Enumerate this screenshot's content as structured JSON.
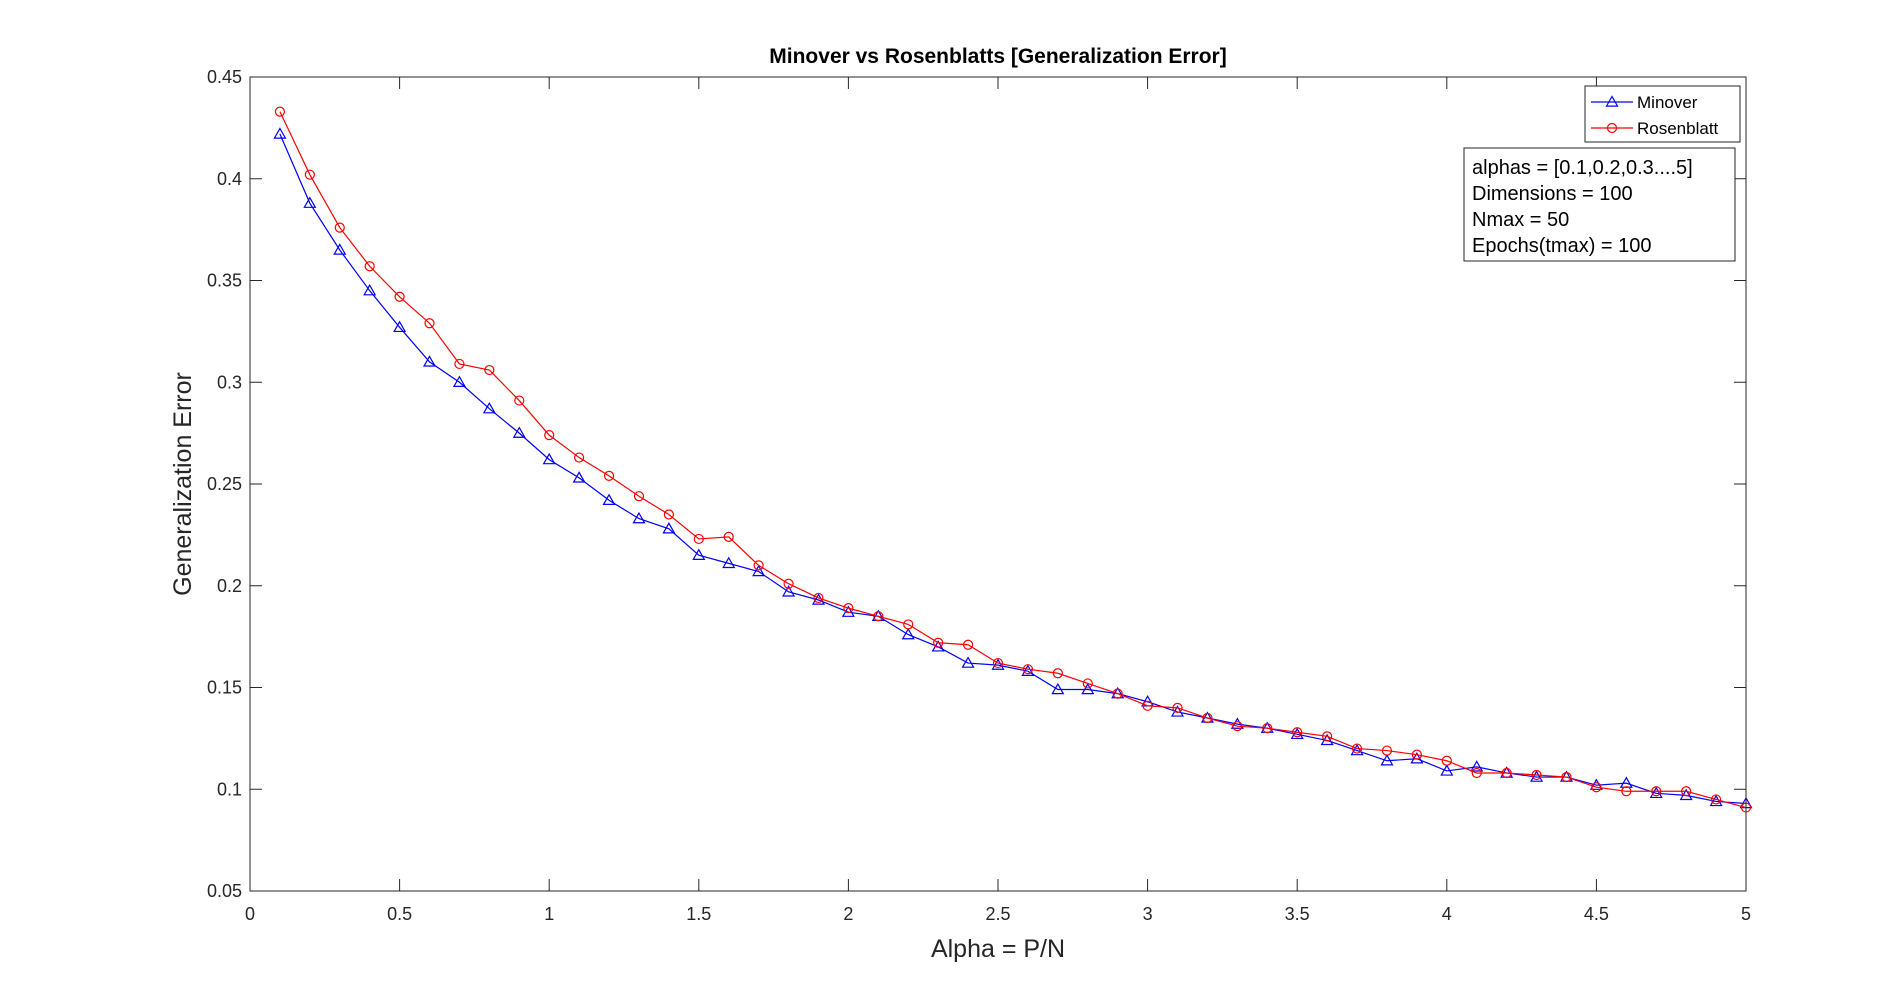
{
  "chart_data": {
    "type": "line",
    "title": "Minover vs Rosenblatts [Generalization Error]",
    "xlabel": "Alpha = P/N",
    "ylabel": "Generalization Error",
    "xlim": [
      0,
      5
    ],
    "ylim": [
      0.05,
      0.45
    ],
    "xticks": [
      0,
      0.5,
      1,
      1.5,
      2,
      2.5,
      3,
      3.5,
      4,
      4.5,
      5
    ],
    "xtick_labels": [
      "0",
      "0.5",
      "1",
      "1.5",
      "2",
      "2.5",
      "3",
      "3.5",
      "4",
      "4.5",
      "5"
    ],
    "yticks": [
      0.05,
      0.1,
      0.15,
      0.2,
      0.25,
      0.3,
      0.35,
      0.4,
      0.45
    ],
    "ytick_labels": [
      "0.05",
      "0.1",
      "0.15",
      "0.2",
      "0.25",
      "0.3",
      "0.35",
      "0.4",
      "0.45"
    ],
    "grid": false,
    "legend_position": "top-right",
    "x": [
      0.1,
      0.2,
      0.3,
      0.4,
      0.5,
      0.6,
      0.7,
      0.8,
      0.9,
      1.0,
      1.1,
      1.2,
      1.3,
      1.4,
      1.5,
      1.6,
      1.7,
      1.8,
      1.9,
      2.0,
      2.1,
      2.2,
      2.3,
      2.4,
      2.5,
      2.6,
      2.7,
      2.8,
      2.9,
      3.0,
      3.1,
      3.2,
      3.3,
      3.4,
      3.5,
      3.6,
      3.7,
      3.8,
      3.9,
      4.0,
      4.1,
      4.2,
      4.3,
      4.4,
      4.5,
      4.6,
      4.7,
      4.8,
      4.9,
      5.0
    ],
    "series": [
      {
        "name": "Minover",
        "color": "#0000ff",
        "marker": "triangle",
        "values": [
          0.422,
          0.388,
          0.365,
          0.345,
          0.327,
          0.31,
          0.3,
          0.287,
          0.275,
          0.262,
          0.253,
          0.242,
          0.233,
          0.228,
          0.215,
          0.211,
          0.207,
          0.197,
          0.193,
          0.187,
          0.185,
          0.176,
          0.17,
          0.162,
          0.161,
          0.158,
          0.149,
          0.149,
          0.147,
          0.143,
          0.138,
          0.135,
          0.132,
          0.13,
          0.127,
          0.124,
          0.119,
          0.114,
          0.115,
          0.109,
          0.111,
          0.108,
          0.106,
          0.106,
          0.102,
          0.103,
          0.098,
          0.097,
          0.094,
          0.093
        ]
      },
      {
        "name": "Rosenblatt",
        "color": "#ff0000",
        "marker": "circle",
        "values": [
          0.433,
          0.402,
          0.376,
          0.357,
          0.342,
          0.329,
          0.309,
          0.306,
          0.291,
          0.274,
          0.263,
          0.254,
          0.244,
          0.235,
          0.223,
          0.224,
          0.21,
          0.201,
          0.194,
          0.189,
          0.185,
          0.181,
          0.172,
          0.171,
          0.162,
          0.159,
          0.157,
          0.152,
          0.147,
          0.141,
          0.14,
          0.135,
          0.131,
          0.13,
          0.128,
          0.126,
          0.12,
          0.119,
          0.117,
          0.114,
          0.108,
          0.108,
          0.107,
          0.106,
          0.101,
          0.099,
          0.099,
          0.099,
          0.095,
          0.091
        ]
      }
    ],
    "annotation_lines": [
      "alphas = [0.1,0.2,0.3....5]",
      "Dimensions = 100",
      "Nmax = 50",
      "Epochs(tmax) = 100"
    ]
  }
}
